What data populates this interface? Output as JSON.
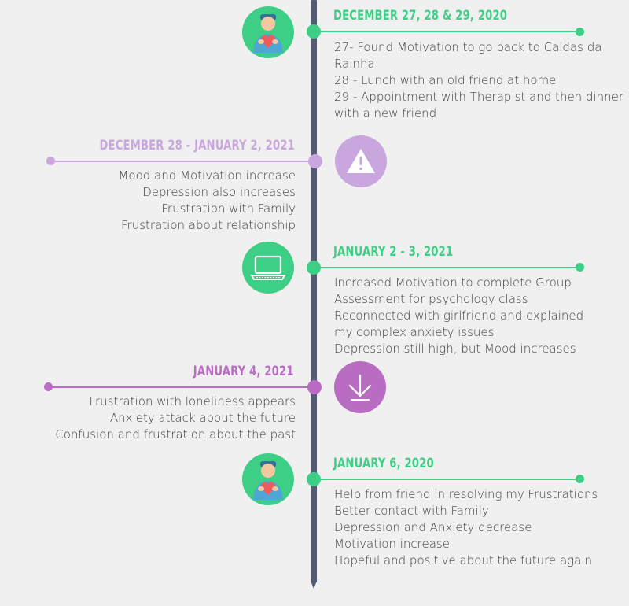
{
  "colors": {
    "axis": "#555b73",
    "green": "#3dcf86",
    "lilac": "#c9a6dd",
    "purple": "#b86cc2"
  },
  "events": [
    {
      "date": "DECEMBER 27, 28 & 29, 2020",
      "icon": "person-heart-icon",
      "lines": [
        "27- Found Motivation to go back to Caldas da",
        "Rainha",
        "28 - Lunch with an old friend at home",
        "29 - Appointment with Therapist and then dinner",
        "with a new friend"
      ]
    },
    {
      "date": "DECEMBER 28 - JANUARY 2, 2021",
      "icon": "warning-icon",
      "lines": [
        "Mood and Motivation increase",
        "Depression also increases",
        "Frustration with Family",
        "Frustration about relationship"
      ]
    },
    {
      "date": "JANUARY 2 - 3, 2021",
      "icon": "laptop-icon",
      "lines": [
        "Increased Motivation to complete Group",
        "Assessment for psychology class",
        "Reconnected with girlfriend and explained",
        "my complex anxiety issues",
        "Depression still high, but Mood increases"
      ]
    },
    {
      "date": "JANUARY 4, 2021",
      "icon": "down-arrow-icon",
      "lines": [
        "Frustration with loneliness appears",
        "Anxiety attack about the future",
        "Confusion and frustration about the past"
      ]
    },
    {
      "date": "JANUARY 6, 2020",
      "icon": "person-heart-icon",
      "lines": [
        "Help from friend in resolving my Frustrations",
        "Better contact with Family",
        "Depression and Anxiety decrease",
        "Motivation increase",
        "Hopeful and positive about the future again"
      ]
    }
  ]
}
